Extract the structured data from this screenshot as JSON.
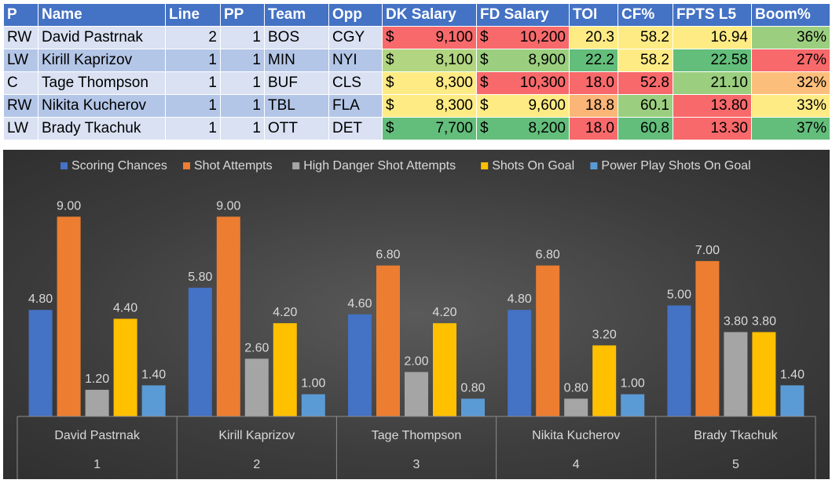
{
  "table": {
    "headers": [
      "P",
      "Name",
      "Line",
      "PP",
      "Team",
      "Opp",
      "DK Salary",
      "FD Salary",
      "TOI",
      "CF%",
      "FPTS L5",
      "Boom%"
    ],
    "currency_symbol": "$",
    "rows": [
      {
        "pos": "RW",
        "name": "David Pastrnak",
        "line": "2",
        "pp": "1",
        "team": "BOS",
        "opp": "CGY",
        "dk": "9,100",
        "fd": "10,200",
        "toi": "20.3",
        "cf": "58.2",
        "fpts": "16.94",
        "boom": "36%"
      },
      {
        "pos": "LW",
        "name": "Kirill Kaprizov",
        "line": "1",
        "pp": "1",
        "team": "MIN",
        "opp": "NYI",
        "dk": "8,100",
        "fd": "8,900",
        "toi": "22.2",
        "cf": "58.2",
        "fpts": "22.58",
        "boom": "27%"
      },
      {
        "pos": "C",
        "name": "Tage Thompson",
        "line": "1",
        "pp": "1",
        "team": "BUF",
        "opp": "CLS",
        "dk": "8,300",
        "fd": "10,300",
        "toi": "18.0",
        "cf": "52.8",
        "fpts": "21.10",
        "boom": "32%"
      },
      {
        "pos": "RW",
        "name": "Nikita Kucherov",
        "line": "1",
        "pp": "1",
        "team": "TBL",
        "opp": "FLA",
        "dk": "8,300",
        "fd": "9,600",
        "toi": "18.8",
        "cf": "60.1",
        "fpts": "13.80",
        "boom": "33%"
      },
      {
        "pos": "LW",
        "name": "Brady Tkachuk",
        "line": "1",
        "pp": "1",
        "team": "OTT",
        "opp": "DET",
        "dk": "7,700",
        "fd": "8,200",
        "toi": "18.0",
        "cf": "60.8",
        "fpts": "13.30",
        "boom": "37%"
      }
    ],
    "cell_colors": {
      "dk": [
        "#f8696b",
        "#b1d580",
        "#ffeb84",
        "#ffeb84",
        "#63be7b"
      ],
      "fd": [
        "#f8696b",
        "#9bcf7f",
        "#f8696b",
        "#ffeb84",
        "#63be7b"
      ],
      "toi": [
        "#ffeb84",
        "#63be7b",
        "#f8696b",
        "#fbb577",
        "#f8696b"
      ],
      "cf": [
        "#ffeb84",
        "#ffeb84",
        "#f8696b",
        "#9bcf7f",
        "#63be7b"
      ],
      "fpts": [
        "#ffeb84",
        "#63be7b",
        "#9bcf7f",
        "#f8696b",
        "#f8696b"
      ],
      "boom": [
        "#9bcf7f",
        "#f8696b",
        "#fcbf7b",
        "#ffeb84",
        "#63be7b"
      ]
    }
  },
  "chart_data": {
    "type": "bar",
    "title": "",
    "categories": [
      "David Pastrnak",
      "Kirill Kaprizov",
      "Tage Thompson",
      "Nikita Kucherov",
      "Brady Tkachuk"
    ],
    "category_numbers": [
      "1",
      "2",
      "3",
      "4",
      "5"
    ],
    "ylim": [
      0,
      10
    ],
    "legend_position": "top",
    "series": [
      {
        "name": "Scoring Chances",
        "color": "#4472c4",
        "values": [
          4.8,
          5.8,
          4.6,
          4.8,
          5.0
        ],
        "labels": [
          "4.80",
          "5.80",
          "4.60",
          "4.80",
          "5.00"
        ]
      },
      {
        "name": "Shot Attempts",
        "color": "#ed7d31",
        "values": [
          9.0,
          9.0,
          6.8,
          6.8,
          7.0
        ],
        "labels": [
          "9.00",
          "9.00",
          "6.80",
          "6.80",
          "7.00"
        ]
      },
      {
        "name": "High Danger Shot Attempts",
        "color": "#a5a5a5",
        "values": [
          1.2,
          2.6,
          2.0,
          0.8,
          3.8
        ],
        "labels": [
          "1.20",
          "2.60",
          "2.00",
          "0.80",
          "3.80"
        ]
      },
      {
        "name": "Shots On Goal",
        "color": "#ffc000",
        "values": [
          4.4,
          4.2,
          4.2,
          3.2,
          3.8
        ],
        "labels": [
          "4.40",
          "4.20",
          "4.20",
          "3.20",
          "3.80"
        ]
      },
      {
        "name": "Power Play Shots On Goal",
        "color": "#5b9bd5",
        "values": [
          1.4,
          1.0,
          0.8,
          1.0,
          1.4
        ],
        "labels": [
          "1.40",
          "1.00",
          "0.80",
          "1.00",
          "1.40"
        ]
      }
    ]
  }
}
